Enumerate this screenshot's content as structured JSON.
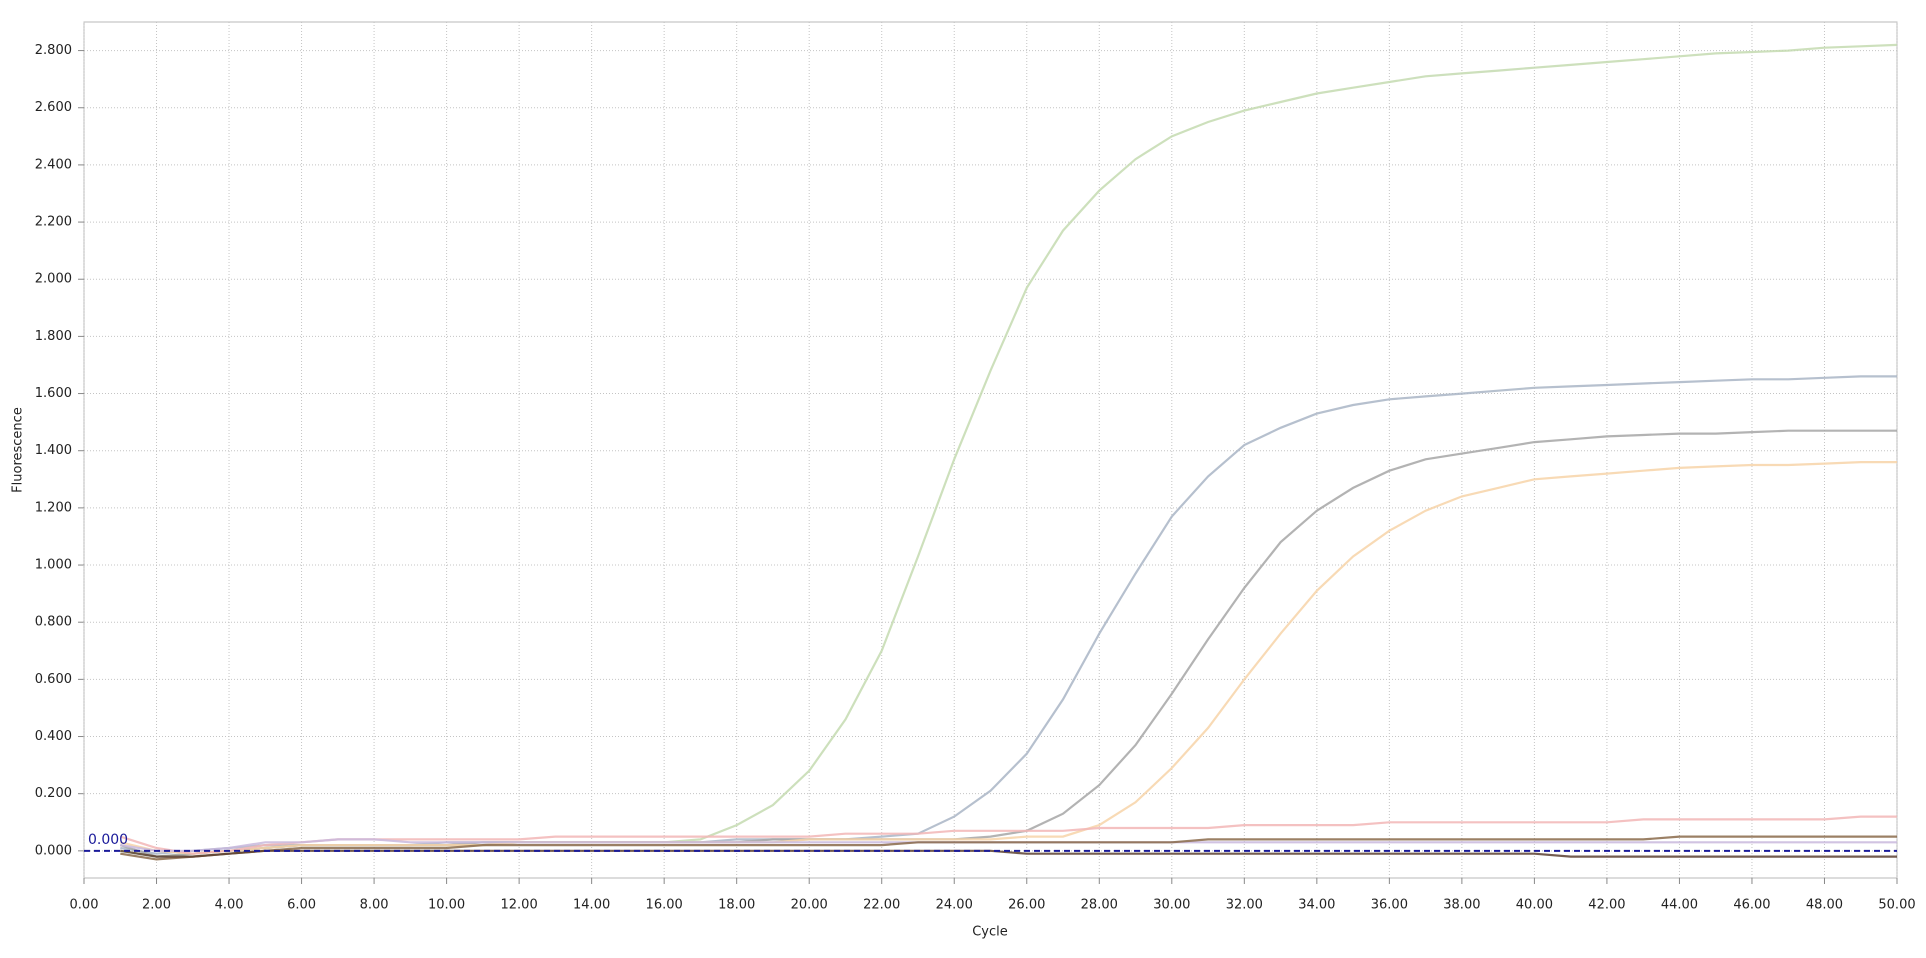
{
  "chart_data": {
    "type": "line",
    "x_label": "Cycle",
    "y_label": "Fluorescence",
    "xlim": [
      0,
      50
    ],
    "ylim": [
      -0.095,
      2.9
    ],
    "grid": true,
    "xticks": [
      {
        "value": 0,
        "label": "0.00"
      },
      {
        "value": 2,
        "label": "2.00"
      },
      {
        "value": 4,
        "label": "4.00"
      },
      {
        "value": 6,
        "label": "6.00"
      },
      {
        "value": 8,
        "label": "8.00"
      },
      {
        "value": 10,
        "label": "10.00"
      },
      {
        "value": 12,
        "label": "12.00"
      },
      {
        "value": 14,
        "label": "14.00"
      },
      {
        "value": 16,
        "label": "16.00"
      },
      {
        "value": 18,
        "label": "18.00"
      },
      {
        "value": 20,
        "label": "20.00"
      },
      {
        "value": 22,
        "label": "22.00"
      },
      {
        "value": 24,
        "label": "24.00"
      },
      {
        "value": 26,
        "label": "26.00"
      },
      {
        "value": 28,
        "label": "28.00"
      },
      {
        "value": 30,
        "label": "30.00"
      },
      {
        "value": 32,
        "label": "32.00"
      },
      {
        "value": 34,
        "label": "34.00"
      },
      {
        "value": 36,
        "label": "36.00"
      },
      {
        "value": 38,
        "label": "38.00"
      },
      {
        "value": 40,
        "label": "40.00"
      },
      {
        "value": 42,
        "label": "42.00"
      },
      {
        "value": 44,
        "label": "44.00"
      },
      {
        "value": 46,
        "label": "46.00"
      },
      {
        "value": 48,
        "label": "48.00"
      },
      {
        "value": 50,
        "label": "50.00"
      }
    ],
    "yticks": [
      {
        "value": 0,
        "label": "0.000"
      },
      {
        "value": 0.2,
        "label": "0.200"
      },
      {
        "value": 0.4,
        "label": "0.400"
      },
      {
        "value": 0.6,
        "label": "0.600"
      },
      {
        "value": 0.8,
        "label": "0.800"
      },
      {
        "value": 1,
        "label": "1.000"
      },
      {
        "value": 1.2,
        "label": "1.200"
      },
      {
        "value": 1.4,
        "label": "1.400"
      },
      {
        "value": 1.6,
        "label": "1.600"
      },
      {
        "value": 1.8,
        "label": "1.800"
      },
      {
        "value": 2,
        "label": "2.000"
      },
      {
        "value": 2.2,
        "label": "2.200"
      },
      {
        "value": 2.4,
        "label": "2.400"
      },
      {
        "value": 2.6,
        "label": "2.600"
      },
      {
        "value": 2.8,
        "label": "2.800"
      }
    ],
    "threshold": {
      "value": 0,
      "label": "0.000",
      "color": "#1a1a9a"
    },
    "x": [
      1,
      2,
      3,
      4,
      5,
      6,
      7,
      8,
      9,
      10,
      11,
      12,
      13,
      14,
      15,
      16,
      17,
      18,
      19,
      20,
      21,
      22,
      23,
      24,
      25,
      26,
      27,
      28,
      29,
      30,
      31,
      32,
      33,
      34,
      35,
      36,
      37,
      38,
      39,
      40,
      41,
      42,
      43,
      44,
      45,
      46,
      47,
      48,
      49,
      50
    ],
    "series": [
      {
        "color": "#c4dab0",
        "values": [
          0,
          -0.02,
          -0.01,
          0,
          0.01,
          0.02,
          0.02,
          0.02,
          0.02,
          0.02,
          0.02,
          0.03,
          0.03,
          0.03,
          0.03,
          0.03,
          0.04,
          0.09,
          0.16,
          0.28,
          0.46,
          0.7,
          1.03,
          1.37,
          1.68,
          1.97,
          2.17,
          2.31,
          2.42,
          2.5,
          2.55,
          2.59,
          2.62,
          2.65,
          2.67,
          2.69,
          2.71,
          2.72,
          2.73,
          2.74,
          2.75,
          2.76,
          2.77,
          2.78,
          2.79,
          2.795,
          2.8,
          2.81,
          2.815,
          2.82
        ]
      },
      {
        "color": "#a9b5c5",
        "values": [
          0.01,
          -0.01,
          0,
          0.01,
          0.02,
          0.02,
          0.02,
          0.02,
          0.02,
          0.03,
          0.03,
          0.03,
          0.03,
          0.03,
          0.03,
          0.03,
          0.03,
          0.04,
          0.04,
          0.04,
          0.04,
          0.05,
          0.06,
          0.12,
          0.21,
          0.34,
          0.53,
          0.76,
          0.97,
          1.17,
          1.31,
          1.42,
          1.48,
          1.53,
          1.56,
          1.58,
          1.59,
          1.6,
          1.61,
          1.62,
          1.625,
          1.63,
          1.635,
          1.64,
          1.645,
          1.65,
          1.65,
          1.655,
          1.66,
          1.66
        ]
      },
      {
        "color": "#a6a6a6",
        "values": [
          0.02,
          -0.02,
          -0.01,
          0,
          0.01,
          0.02,
          0.02,
          0.02,
          0.02,
          0.02,
          0.03,
          0.03,
          0.03,
          0.03,
          0.03,
          0.03,
          0.03,
          0.03,
          0.04,
          0.04,
          0.04,
          0.04,
          0.04,
          0.04,
          0.05,
          0.07,
          0.13,
          0.23,
          0.37,
          0.55,
          0.74,
          0.92,
          1.08,
          1.19,
          1.27,
          1.33,
          1.37,
          1.39,
          1.41,
          1.43,
          1.44,
          1.45,
          1.455,
          1.46,
          1.46,
          1.465,
          1.47,
          1.47,
          1.47,
          1.47
        ]
      },
      {
        "color": "#f7d3a8",
        "values": [
          0.03,
          0,
          -0.01,
          0,
          0.01,
          0.02,
          0.02,
          0.02,
          0.02,
          0.02,
          0.02,
          0.03,
          0.03,
          0.03,
          0.03,
          0.03,
          0.03,
          0.03,
          0.03,
          0.04,
          0.04,
          0.04,
          0.04,
          0.04,
          0.04,
          0.05,
          0.05,
          0.09,
          0.17,
          0.29,
          0.43,
          0.6,
          0.76,
          0.91,
          1.03,
          1.12,
          1.19,
          1.24,
          1.27,
          1.3,
          1.31,
          1.32,
          1.33,
          1.34,
          1.345,
          1.35,
          1.35,
          1.355,
          1.36,
          1.36
        ]
      },
      {
        "color": "#f2b6b6",
        "values": [
          0.05,
          0.01,
          -0.01,
          0,
          0.02,
          0.03,
          0.04,
          0.04,
          0.04,
          0.04,
          0.04,
          0.04,
          0.05,
          0.05,
          0.05,
          0.05,
          0.05,
          0.05,
          0.05,
          0.05,
          0.06,
          0.06,
          0.06,
          0.07,
          0.07,
          0.07,
          0.07,
          0.08,
          0.08,
          0.08,
          0.08,
          0.09,
          0.09,
          0.09,
          0.09,
          0.1,
          0.1,
          0.1,
          0.1,
          0.1,
          0.1,
          0.1,
          0.11,
          0.11,
          0.11,
          0.11,
          0.11,
          0.11,
          0.12,
          0.12
        ]
      },
      {
        "color": "#c9b9dd",
        "values": [
          0.02,
          0,
          0,
          0.01,
          0.03,
          0.03,
          0.04,
          0.04,
          0.03,
          0.03,
          0.03,
          0.03,
          0.03,
          0.03,
          0.03,
          0.03,
          0.03,
          0.03,
          0.03,
          0.03,
          0.03,
          0.03,
          0.03,
          0.03,
          0.03,
          0.03,
          0.03,
          0.03,
          0.03,
          0.03,
          0.03,
          0.03,
          0.03,
          0.03,
          0.03,
          0.03,
          0.03,
          0.03,
          0.03,
          0.03,
          0.03,
          0.03,
          0.03,
          0.03,
          0.03,
          0.03,
          0.03,
          0.03,
          0.03,
          0.03
        ]
      },
      {
        "color": "#8a6a4a",
        "values": [
          -0.01,
          -0.03,
          -0.02,
          -0.01,
          0,
          0.01,
          0.01,
          0.01,
          0.01,
          0.01,
          0.02,
          0.02,
          0.02,
          0.02,
          0.02,
          0.02,
          0.02,
          0.02,
          0.02,
          0.02,
          0.02,
          0.02,
          0.03,
          0.03,
          0.03,
          0.03,
          0.03,
          0.03,
          0.03,
          0.03,
          0.04,
          0.04,
          0.04,
          0.04,
          0.04,
          0.04,
          0.04,
          0.04,
          0.04,
          0.04,
          0.04,
          0.04,
          0.04,
          0.05,
          0.05,
          0.05,
          0.05,
          0.05,
          0.05,
          0.05
        ]
      },
      {
        "color": "#5a4030",
        "values": [
          0,
          -0.02,
          -0.02,
          -0.01,
          0,
          0,
          0,
          0,
          0,
          0,
          0,
          0,
          0,
          0,
          0,
          0,
          0,
          0,
          0,
          0,
          0,
          0,
          0,
          0,
          0,
          -0.01,
          -0.01,
          -0.01,
          -0.01,
          -0.01,
          -0.01,
          -0.01,
          -0.01,
          -0.01,
          -0.01,
          -0.01,
          -0.01,
          -0.01,
          -0.01,
          -0.01,
          -0.02,
          -0.02,
          -0.02,
          -0.02,
          -0.02,
          -0.02,
          -0.02,
          -0.02,
          -0.02,
          -0.02
        ]
      }
    ]
  }
}
